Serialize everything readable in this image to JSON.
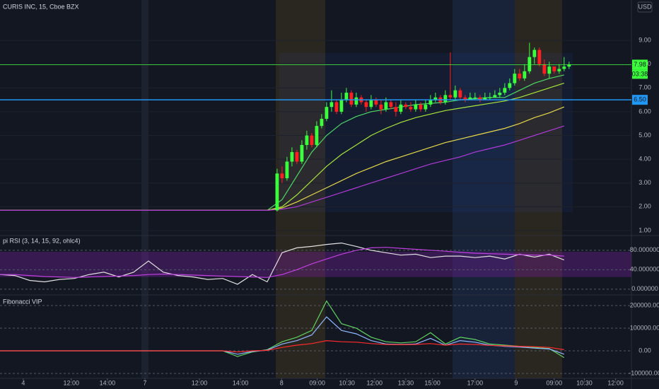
{
  "chart_data": [
    {
      "type": "candlestick",
      "title": "CURIS INC, 15, Cboe BZX",
      "currency": "USD",
      "xlim": [
        0,
        127.6
      ],
      "ylim": [
        0.82,
        10.7
      ],
      "xticks": [
        {
          "value": 4.7,
          "label": "4"
        },
        {
          "value": 14.4,
          "label": "12:00"
        },
        {
          "value": 21.7,
          "label": "14:00"
        },
        {
          "value": 29.3,
          "label": "7"
        },
        {
          "value": 40.3,
          "label": "12:00"
        },
        {
          "value": 48.6,
          "label": "14:00"
        },
        {
          "value": 56.9,
          "label": "8"
        },
        {
          "value": 64.1,
          "label": "09:00"
        },
        {
          "value": 70.1,
          "label": "10:30"
        },
        {
          "value": 75.7,
          "label": "12:00"
        },
        {
          "value": 82,
          "label": "13:30"
        },
        {
          "value": 87.4,
          "label": "15:00"
        },
        {
          "value": 96,
          "label": "17:00"
        },
        {
          "value": 104.3,
          "label": "9"
        },
        {
          "value": 112,
          "label": "09:00"
        },
        {
          "value": 118.1,
          "label": "10:30"
        },
        {
          "value": 124.4,
          "label": "12:00"
        }
      ],
      "yticks": [
        {
          "value": 1,
          "label": "1.00"
        },
        {
          "value": 2,
          "label": "2.00"
        },
        {
          "value": 3,
          "label": "3.00"
        },
        {
          "value": 4,
          "label": "4.00"
        },
        {
          "value": 5,
          "label": "5.00"
        },
        {
          "value": 6,
          "label": "6.00"
        },
        {
          "value": 7,
          "label": "7.00"
        },
        {
          "value": 8,
          "label": "8.00"
        },
        {
          "value": 9,
          "label": "9.00"
        }
      ],
      "grid": true,
      "up_color": "#3cff3c",
      "down_color": "#ff1f1f",
      "x": [
        56,
        57,
        58,
        59,
        60,
        61,
        62,
        63,
        64,
        65,
        66,
        67,
        68,
        69,
        70,
        71,
        72,
        73,
        74,
        75,
        76,
        77,
        78,
        79,
        80,
        81,
        82,
        83,
        84,
        85,
        86,
        87,
        88,
        89,
        90,
        91,
        92,
        93,
        94,
        95,
        96,
        97,
        98,
        99,
        100,
        101,
        102,
        103,
        104,
        105,
        106,
        107,
        108,
        109,
        110,
        111,
        112,
        113,
        114,
        115
      ],
      "open": [
        1.85,
        3.4,
        3.2,
        3.9,
        4.3,
        3.9,
        4.6,
        5.0,
        4.6,
        5.4,
        5.7,
        6.2,
        6.4,
        6.0,
        6.5,
        6.8,
        6.3,
        6.6,
        6.4,
        6.2,
        6.5,
        6.3,
        6.1,
        6.4,
        6.2,
        6.0,
        6.3,
        6.2,
        6.1,
        6.3,
        6.1,
        6.3,
        6.5,
        6.6,
        6.4,
        6.7,
        6.6,
        6.9,
        6.6,
        6.5,
        6.6,
        6.6,
        6.5,
        6.6,
        6.6,
        6.7,
        6.8,
        7.0,
        7.2,
        7.6,
        7.4,
        7.7,
        8.3,
        8.6,
        8.0,
        7.6,
        7.9,
        7.7,
        7.8,
        7.9
      ],
      "high": [
        3.6,
        3.7,
        4.1,
        4.5,
        4.4,
        4.8,
        5.2,
        5.1,
        5.6,
        5.9,
        6.4,
        6.9,
        6.5,
        6.8,
        7.0,
        6.9,
        6.8,
        6.7,
        6.5,
        6.7,
        6.6,
        6.5,
        6.6,
        6.5,
        6.4,
        6.5,
        6.4,
        6.4,
        6.5,
        6.4,
        6.5,
        6.7,
        6.8,
        6.7,
        6.9,
        8.5,
        7.1,
        7.0,
        6.7,
        6.8,
        6.8,
        6.7,
        6.8,
        6.8,
        6.9,
        7.0,
        7.2,
        7.4,
        7.8,
        7.8,
        8.0,
        8.9,
        8.7,
        8.7,
        8.2,
        8.1,
        7.9,
        8.0,
        8.3,
        8.1
      ],
      "low": [
        1.8,
        3.0,
        3.1,
        3.7,
        3.8,
        3.8,
        4.4,
        4.5,
        4.5,
        5.3,
        5.6,
        6.0,
        5.9,
        5.9,
        6.4,
        6.2,
        6.2,
        6.3,
        6.0,
        6.1,
        6.2,
        5.9,
        6.0,
        6.1,
        5.8,
        5.9,
        6.1,
        6.0,
        6.0,
        6.0,
        6.0,
        6.2,
        6.4,
        6.3,
        6.3,
        6.5,
        6.5,
        6.5,
        6.4,
        6.5,
        6.5,
        6.4,
        6.5,
        6.5,
        6.6,
        6.6,
        6.7,
        6.9,
        7.1,
        7.3,
        7.3,
        7.6,
        8.0,
        7.9,
        7.5,
        7.4,
        7.6,
        7.6,
        7.7,
        7.8
      ],
      "close": [
        3.4,
        3.2,
        3.9,
        4.3,
        3.9,
        4.6,
        5.0,
        4.6,
        5.4,
        5.7,
        6.2,
        6.4,
        6.0,
        6.5,
        6.8,
        6.3,
        6.6,
        6.4,
        6.2,
        6.5,
        6.3,
        6.1,
        6.4,
        6.2,
        6.0,
        6.3,
        6.2,
        6.1,
        6.3,
        6.1,
        6.3,
        6.5,
        6.6,
        6.4,
        6.7,
        6.6,
        6.9,
        6.6,
        6.5,
        6.6,
        6.6,
        6.5,
        6.6,
        6.6,
        6.7,
        6.8,
        7.0,
        7.2,
        7.6,
        7.4,
        7.7,
        8.3,
        8.6,
        8.0,
        7.6,
        7.9,
        7.7,
        7.8,
        7.9,
        7.98
      ],
      "overlay_x": [
        0,
        3,
        6,
        9,
        12,
        15,
        18,
        21,
        24,
        27,
        30,
        33,
        36,
        39,
        42,
        45,
        48,
        51,
        54,
        57,
        60,
        63,
        66,
        69,
        72,
        75,
        78,
        81,
        84,
        87,
        90,
        93,
        96,
        99,
        102,
        105,
        108,
        111,
        114
      ],
      "overlays": [
        {
          "color": "#4cd964",
          "values": [
            1.85,
            1.85,
            1.85,
            1.85,
            1.85,
            1.85,
            1.85,
            1.85,
            1.85,
            1.85,
            1.85,
            1.85,
            1.85,
            1.85,
            1.85,
            1.85,
            1.85,
            1.85,
            1.85,
            2.3,
            3.3,
            4.3,
            5.0,
            5.5,
            5.8,
            6.0,
            6.1,
            6.2,
            6.3,
            6.35,
            6.4,
            6.5,
            6.55,
            6.6,
            6.6,
            6.9,
            7.2,
            7.4,
            7.55
          ]
        },
        {
          "color": "#a8e63a",
          "values": [
            1.85,
            1.85,
            1.85,
            1.85,
            1.85,
            1.85,
            1.85,
            1.85,
            1.85,
            1.85,
            1.85,
            1.85,
            1.85,
            1.85,
            1.85,
            1.85,
            1.85,
            1.85,
            1.85,
            2.0,
            2.5,
            3.1,
            3.7,
            4.2,
            4.6,
            5.0,
            5.3,
            5.55,
            5.75,
            5.9,
            6.05,
            6.15,
            6.25,
            6.35,
            6.45,
            6.6,
            6.8,
            7.0,
            7.2
          ]
        },
        {
          "color": "#e6d84a",
          "values": [
            1.85,
            1.85,
            1.85,
            1.85,
            1.85,
            1.85,
            1.85,
            1.85,
            1.85,
            1.85,
            1.85,
            1.85,
            1.85,
            1.85,
            1.85,
            1.85,
            1.85,
            1.85,
            1.85,
            1.95,
            2.2,
            2.5,
            2.8,
            3.1,
            3.4,
            3.65,
            3.9,
            4.1,
            4.3,
            4.5,
            4.7,
            4.85,
            5.0,
            5.15,
            5.3,
            5.5,
            5.75,
            5.95,
            6.2
          ]
        },
        {
          "color": "#b03ad8",
          "values": [
            1.85,
            1.85,
            1.85,
            1.85,
            1.85,
            1.85,
            1.85,
            1.85,
            1.85,
            1.85,
            1.85,
            1.85,
            1.85,
            1.85,
            1.85,
            1.85,
            1.85,
            1.85,
            1.85,
            1.9,
            2.0,
            2.2,
            2.4,
            2.6,
            2.8,
            3.0,
            3.2,
            3.4,
            3.6,
            3.8,
            3.95,
            4.1,
            4.3,
            4.45,
            4.6,
            4.8,
            5.0,
            5.2,
            5.4
          ]
        }
      ],
      "price_lines": [
        {
          "value": 7.98,
          "color": "#3cff3c"
        },
        {
          "value": 6.5,
          "label": "6.50",
          "color": "#2196f3"
        }
      ],
      "countdown": "03:38"
    },
    {
      "type": "line",
      "title": "pi RSI (3, 14, 15, 92, ohlc4)",
      "xlim": [
        0,
        127.6
      ],
      "ylim": [
        -9,
        106
      ],
      "yticks": [
        {
          "value": 0,
          "label": "0.000000"
        },
        {
          "value": 40,
          "label": "40.000000"
        },
        {
          "value": 80,
          "label": "80.000000"
        }
      ],
      "band": [
        25,
        77
      ],
      "band_color": "#7b1fa2",
      "x": [
        0,
        3,
        6,
        9,
        12,
        15,
        18,
        21,
        24,
        27,
        30,
        33,
        36,
        39,
        42,
        45,
        48,
        51,
        54,
        57,
        60,
        63,
        66,
        69,
        72,
        75,
        78,
        81,
        84,
        87,
        90,
        93,
        96,
        99,
        102,
        105,
        108,
        111,
        114
      ],
      "series": [
        {
          "color": "#e0e0e0",
          "values": [
            30,
            28,
            18,
            15,
            20,
            22,
            30,
            35,
            25,
            35,
            58,
            35,
            28,
            25,
            20,
            22,
            10,
            30,
            15,
            75,
            85,
            88,
            92,
            95,
            88,
            80,
            75,
            70,
            72,
            65,
            68,
            68,
            65,
            68,
            62,
            72,
            66,
            72,
            60
          ]
        },
        {
          "color": "#c040e0",
          "values": [
            30,
            30,
            28,
            26,
            25,
            24,
            25,
            26,
            27,
            28,
            30,
            31,
            30,
            29,
            28,
            27,
            26,
            25,
            24,
            30,
            40,
            52,
            62,
            72,
            80,
            85,
            86,
            84,
            82,
            80,
            78,
            76,
            74,
            73,
            72,
            71,
            70,
            70,
            68
          ]
        }
      ]
    },
    {
      "type": "line",
      "title": "Fibonacci VIP",
      "xlim": [
        0,
        127.6
      ],
      "ylim": [
        -121875,
        243750
      ],
      "yticks": [
        {
          "value": -100000,
          "label": "-100000.00"
        },
        {
          "value": 0,
          "label": "0.00"
        },
        {
          "value": 100000,
          "label": "100000.00"
        },
        {
          "value": 200000,
          "label": "200000.00"
        }
      ],
      "x": [
        0,
        3,
        6,
        9,
        12,
        15,
        18,
        21,
        24,
        27,
        30,
        33,
        36,
        39,
        42,
        45,
        48,
        51,
        54,
        57,
        60,
        63,
        66,
        69,
        72,
        75,
        78,
        81,
        84,
        87,
        90,
        93,
        96,
        99,
        102,
        105,
        108,
        111,
        114
      ],
      "series": [
        {
          "color": "#5fd35f",
          "values": [
            0,
            0,
            0,
            0,
            0,
            0,
            0,
            0,
            0,
            0,
            0,
            0,
            0,
            0,
            0,
            0,
            -25000,
            -5000,
            5000,
            40000,
            60000,
            90000,
            220000,
            120000,
            100000,
            60000,
            40000,
            35000,
            40000,
            80000,
            30000,
            60000,
            50000,
            30000,
            25000,
            20000,
            15000,
            10000,
            -30000
          ]
        },
        {
          "color": "#8fb8ff",
          "values": [
            0,
            0,
            0,
            0,
            0,
            0,
            0,
            0,
            0,
            0,
            0,
            0,
            0,
            0,
            0,
            0,
            -15000,
            -3000,
            3000,
            30000,
            45000,
            70000,
            150000,
            90000,
            75000,
            45000,
            30000,
            28000,
            30000,
            55000,
            25000,
            45000,
            38000,
            25000,
            20000,
            17000,
            12000,
            8000,
            -15000
          ]
        },
        {
          "color": "#ff2b2b",
          "values": [
            0,
            0,
            0,
            0,
            0,
            0,
            0,
            0,
            0,
            0,
            0,
            0,
            0,
            0,
            0,
            0,
            -5000,
            0,
            2000,
            15000,
            25000,
            32000,
            45000,
            40000,
            38000,
            32000,
            28000,
            27000,
            28000,
            32000,
            25000,
            30000,
            28000,
            24000,
            22000,
            20000,
            18000,
            15000,
            5000
          ]
        }
      ]
    }
  ]
}
